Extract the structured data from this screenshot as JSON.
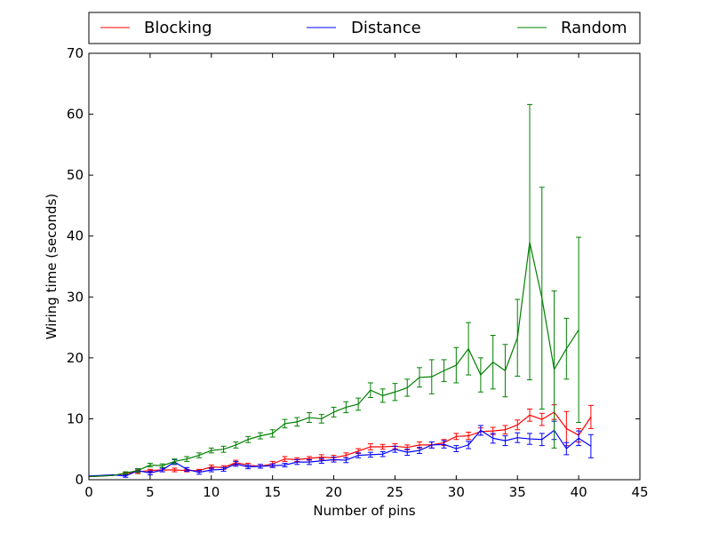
{
  "chart_data": {
    "type": "line",
    "title": "",
    "xlabel": "Number of pins",
    "ylabel": "Wiring time (seconds)",
    "xlim": [
      0,
      45
    ],
    "ylim": [
      0,
      70
    ],
    "xticks": [
      0,
      5,
      10,
      15,
      20,
      25,
      30,
      35,
      40,
      45
    ],
    "yticks": [
      0,
      10,
      20,
      30,
      40,
      50,
      60,
      70
    ],
    "grid": false,
    "legend": {
      "placement": "top, above plot (3 columns)",
      "entries": [
        "Blocking",
        "Distance",
        "Random"
      ]
    },
    "series": [
      {
        "name": "Blocking",
        "color": "#ff0000",
        "x": [
          0,
          1,
          2,
          3,
          4,
          5,
          6,
          7,
          8,
          9,
          10,
          11,
          12,
          13,
          14,
          15,
          16,
          17,
          18,
          19,
          20,
          21,
          22,
          23,
          24,
          25,
          26,
          27,
          28,
          29,
          30,
          31,
          32,
          33,
          34,
          35,
          36,
          37,
          38,
          39,
          40,
          41
        ],
        "y": [
          0.5,
          0.6,
          0.7,
          1.0,
          1.3,
          1.5,
          1.6,
          1.6,
          1.5,
          1.5,
          2.1,
          2.0,
          2.8,
          2.4,
          2.2,
          2.6,
          3.4,
          3.3,
          3.5,
          3.7,
          3.6,
          4.0,
          4.7,
          5.4,
          5.4,
          5.5,
          5.3,
          5.7,
          5.7,
          6.1,
          7.1,
          7.2,
          7.9,
          8.0,
          8.2,
          9.0,
          10.6,
          9.9,
          11.1,
          8.4,
          7.3,
          10.3
        ],
        "err": [
          0,
          0,
          0,
          0.2,
          0.3,
          0.2,
          0.3,
          0.3,
          0.2,
          0.2,
          0.3,
          0.3,
          0.4,
          0.3,
          0.3,
          0.4,
          0.4,
          0.3,
          0.3,
          0.4,
          0.4,
          0.4,
          0.4,
          0.5,
          0.4,
          0.4,
          0.4,
          0.5,
          0.5,
          0.5,
          0.5,
          0.6,
          0.6,
          0.6,
          0.7,
          0.8,
          1.0,
          1.0,
          1.2,
          2.8,
          1.1,
          1.9
        ]
      },
      {
        "name": "Distance",
        "color": "#0000ff",
        "x": [
          0,
          1,
          2,
          3,
          4,
          5,
          6,
          7,
          8,
          9,
          10,
          11,
          12,
          13,
          14,
          15,
          16,
          17,
          18,
          19,
          20,
          21,
          22,
          23,
          24,
          25,
          26,
          27,
          28,
          29,
          30,
          31,
          32,
          33,
          34,
          35,
          36,
          37,
          38,
          39,
          40,
          41
        ],
        "y": [
          0.6,
          0.7,
          0.8,
          0.6,
          1.5,
          1.1,
          1.6,
          2.9,
          1.7,
          1.2,
          1.6,
          1.7,
          2.6,
          2.1,
          2.2,
          2.3,
          2.4,
          2.9,
          2.9,
          3.1,
          3.3,
          3.2,
          4.0,
          4.1,
          4.2,
          5.0,
          4.5,
          4.8,
          5.7,
          5.8,
          5.1,
          5.7,
          8.1,
          6.8,
          6.4,
          6.9,
          6.7,
          6.6,
          8.1,
          5.1,
          6.8,
          5.5
        ],
        "err": [
          0,
          0,
          0,
          0.2,
          0.3,
          0.3,
          0.3,
          0.4,
          0.3,
          0.3,
          0.3,
          0.3,
          0.4,
          0.3,
          0.3,
          0.3,
          0.3,
          0.4,
          0.4,
          0.4,
          0.4,
          0.4,
          0.4,
          0.4,
          0.4,
          0.5,
          0.5,
          0.5,
          0.5,
          0.6,
          0.5,
          0.6,
          0.8,
          0.8,
          0.8,
          0.8,
          0.9,
          1.0,
          1.5,
          1.0,
          1.2,
          1.9
        ]
      },
      {
        "name": "Random",
        "color": "#008000",
        "x": [
          0,
          1,
          2,
          3,
          4,
          5,
          6,
          7,
          8,
          9,
          10,
          11,
          12,
          13,
          14,
          15,
          16,
          17,
          18,
          19,
          20,
          21,
          22,
          23,
          24,
          25,
          26,
          27,
          28,
          29,
          30,
          31,
          32,
          33,
          34,
          35,
          36,
          37,
          38,
          39,
          40
        ],
        "y": [
          0.5,
          0.6,
          0.7,
          1.1,
          1.5,
          2.4,
          2.3,
          3.0,
          3.4,
          4.0,
          4.8,
          5.0,
          5.7,
          6.6,
          7.2,
          7.6,
          9.2,
          9.5,
          10.2,
          10.0,
          11.1,
          11.9,
          12.4,
          14.7,
          13.8,
          14.4,
          15.1,
          16.8,
          16.9,
          17.9,
          18.8,
          21.5,
          17.2,
          19.3,
          17.9,
          23.3,
          39.0,
          29.8,
          18.1,
          21.5,
          24.6
        ],
        "err": [
          0,
          0,
          0,
          0.2,
          0.3,
          0.3,
          0.3,
          0.4,
          0.4,
          0.4,
          0.4,
          0.5,
          0.5,
          0.5,
          0.5,
          0.6,
          0.7,
          0.7,
          0.8,
          0.7,
          0.8,
          0.9,
          1.0,
          1.2,
          1.1,
          1.4,
          1.4,
          1.6,
          2.8,
          1.8,
          2.9,
          4.3,
          2.8,
          4.4,
          4.3,
          6.3,
          22.6,
          18.2,
          12.9,
          5.0,
          15.2
        ]
      }
    ]
  }
}
